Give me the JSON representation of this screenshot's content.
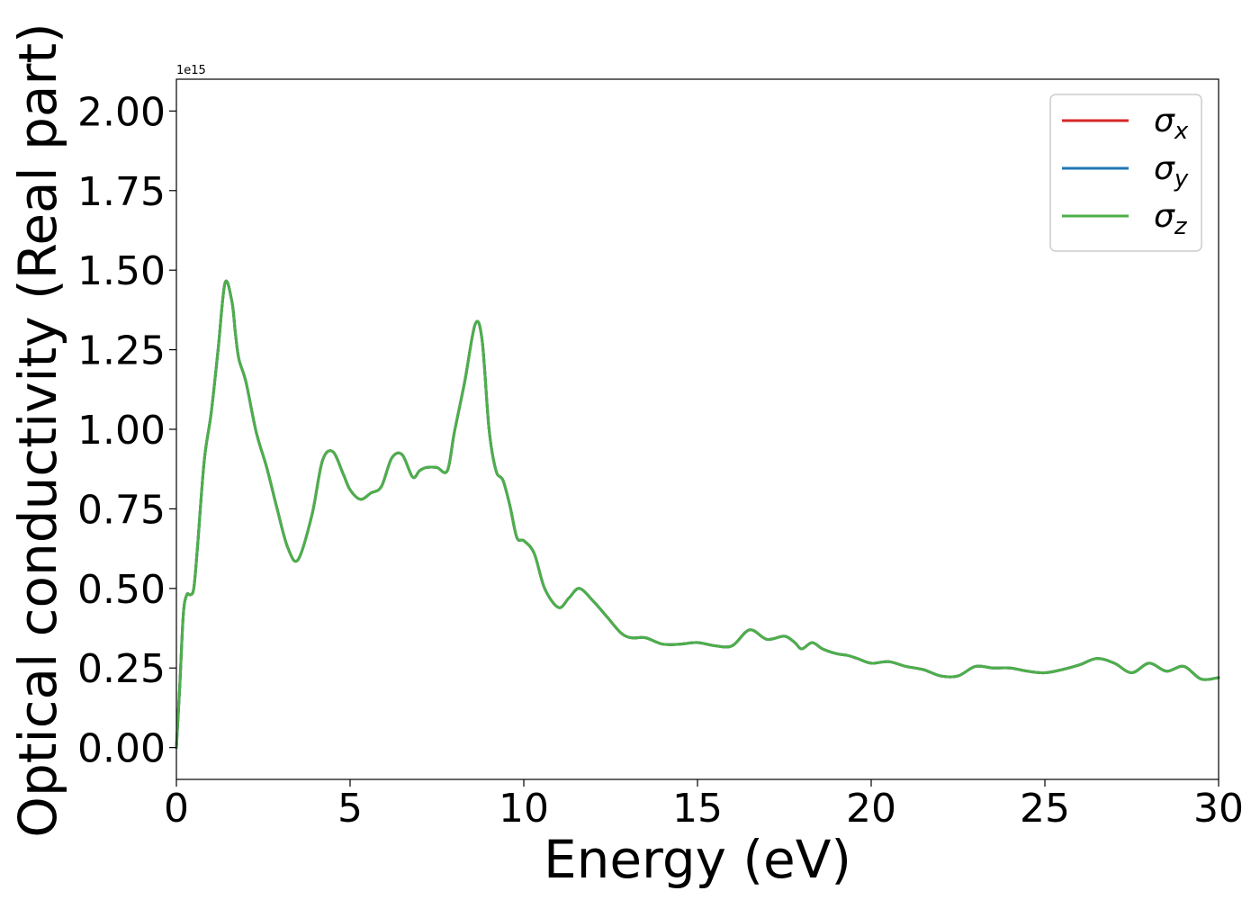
{
  "chart_data": {
    "type": "line",
    "xlabel": "Energy (eV)",
    "ylabel": "Optical conductivity (Real part)",
    "offset_text": "1e15",
    "xlim": [
      0,
      30
    ],
    "ylim": [
      -0.1,
      2.1
    ],
    "y_scale_factor": 1000000000000000.0,
    "xticks": [
      0,
      5,
      10,
      15,
      20,
      25,
      30
    ],
    "xtick_labels": [
      "0",
      "5",
      "10",
      "15",
      "20",
      "25",
      "30"
    ],
    "yticks": [
      0,
      0.25,
      0.5,
      0.75,
      1.0,
      1.25,
      1.5,
      1.75,
      2.0
    ],
    "ytick_labels": [
      "0.00",
      "0.25",
      "0.50",
      "0.75",
      "1.00",
      "1.25",
      "1.50",
      "1.75",
      "2.00"
    ],
    "grid": false,
    "legend_position": "top-right",
    "x": [
      0,
      0.1,
      0.2,
      0.3,
      0.4,
      0.5,
      0.6,
      0.8,
      1.0,
      1.2,
      1.4,
      1.6,
      1.7,
      1.8,
      2.0,
      2.3,
      2.6,
      2.9,
      3.2,
      3.5,
      3.9,
      4.2,
      4.5,
      4.8,
      5.0,
      5.3,
      5.6,
      5.9,
      6.2,
      6.5,
      6.8,
      7.0,
      7.2,
      7.5,
      7.8,
      8.0,
      8.3,
      8.6,
      8.8,
      9.0,
      9.2,
      9.4,
      9.6,
      9.8,
      10.0,
      10.3,
      10.6,
      11.0,
      11.3,
      11.6,
      12.0,
      12.4,
      12.8,
      13.1,
      13.5,
      14.0,
      14.5,
      15.0,
      15.5,
      16.0,
      16.5,
      17.0,
      17.5,
      17.8,
      18.0,
      18.3,
      18.6,
      19.0,
      19.3,
      19.6,
      20.0,
      20.5,
      21.0,
      21.5,
      22.0,
      22.5,
      23.0,
      23.5,
      24.0,
      24.5,
      25.0,
      25.5,
      26.0,
      26.5,
      27.0,
      27.5,
      28.0,
      28.5,
      29.0,
      29.5,
      30.0
    ],
    "series": [
      {
        "name": "σx",
        "color": "#d62728",
        "values": [
          0.0,
          0.2,
          0.42,
          0.48,
          0.48,
          0.5,
          0.62,
          0.9,
          1.05,
          1.25,
          1.46,
          1.4,
          1.3,
          1.22,
          1.15,
          0.99,
          0.88,
          0.75,
          0.63,
          0.59,
          0.73,
          0.9,
          0.93,
          0.86,
          0.81,
          0.78,
          0.8,
          0.82,
          0.91,
          0.92,
          0.85,
          0.87,
          0.88,
          0.88,
          0.87,
          0.99,
          1.15,
          1.33,
          1.28,
          1.0,
          0.87,
          0.84,
          0.76,
          0.66,
          0.65,
          0.61,
          0.5,
          0.44,
          0.47,
          0.5,
          0.46,
          0.41,
          0.36,
          0.345,
          0.345,
          0.325,
          0.325,
          0.33,
          0.32,
          0.32,
          0.37,
          0.34,
          0.35,
          0.33,
          0.31,
          0.33,
          0.31,
          0.295,
          0.29,
          0.28,
          0.265,
          0.27,
          0.255,
          0.245,
          0.225,
          0.225,
          0.255,
          0.25,
          0.25,
          0.24,
          0.235,
          0.245,
          0.26,
          0.28,
          0.265,
          0.235,
          0.265,
          0.24,
          0.255,
          0.215,
          0.22
        ]
      },
      {
        "name": "σy",
        "color": "#1f77b4",
        "values": [
          0.0,
          0.2,
          0.42,
          0.48,
          0.48,
          0.5,
          0.62,
          0.9,
          1.05,
          1.25,
          1.46,
          1.4,
          1.3,
          1.22,
          1.15,
          0.99,
          0.88,
          0.75,
          0.63,
          0.59,
          0.73,
          0.9,
          0.93,
          0.86,
          0.81,
          0.78,
          0.8,
          0.82,
          0.91,
          0.92,
          0.85,
          0.87,
          0.88,
          0.88,
          0.87,
          0.99,
          1.15,
          1.33,
          1.28,
          1.0,
          0.87,
          0.84,
          0.76,
          0.66,
          0.65,
          0.61,
          0.5,
          0.44,
          0.47,
          0.5,
          0.46,
          0.41,
          0.36,
          0.345,
          0.345,
          0.325,
          0.325,
          0.33,
          0.32,
          0.32,
          0.37,
          0.34,
          0.35,
          0.33,
          0.31,
          0.33,
          0.31,
          0.295,
          0.29,
          0.28,
          0.265,
          0.27,
          0.255,
          0.245,
          0.225,
          0.225,
          0.255,
          0.25,
          0.25,
          0.24,
          0.235,
          0.245,
          0.26,
          0.28,
          0.265,
          0.235,
          0.265,
          0.24,
          0.255,
          0.215,
          0.22
        ]
      },
      {
        "name": "σz",
        "color": "#4daf4a",
        "values": [
          0.0,
          0.2,
          0.42,
          0.48,
          0.48,
          0.5,
          0.62,
          0.9,
          1.05,
          1.25,
          1.46,
          1.4,
          1.3,
          1.22,
          1.15,
          0.99,
          0.88,
          0.75,
          0.63,
          0.59,
          0.73,
          0.9,
          0.93,
          0.86,
          0.81,
          0.78,
          0.8,
          0.82,
          0.91,
          0.92,
          0.85,
          0.87,
          0.88,
          0.88,
          0.87,
          0.99,
          1.15,
          1.33,
          1.28,
          1.0,
          0.87,
          0.84,
          0.76,
          0.66,
          0.65,
          0.61,
          0.5,
          0.44,
          0.47,
          0.5,
          0.46,
          0.41,
          0.36,
          0.345,
          0.345,
          0.325,
          0.325,
          0.33,
          0.32,
          0.32,
          0.37,
          0.34,
          0.35,
          0.33,
          0.31,
          0.33,
          0.31,
          0.295,
          0.29,
          0.28,
          0.265,
          0.27,
          0.255,
          0.245,
          0.225,
          0.225,
          0.255,
          0.25,
          0.25,
          0.24,
          0.235,
          0.245,
          0.26,
          0.28,
          0.265,
          0.235,
          0.265,
          0.24,
          0.255,
          0.215,
          0.22
        ]
      }
    ]
  }
}
